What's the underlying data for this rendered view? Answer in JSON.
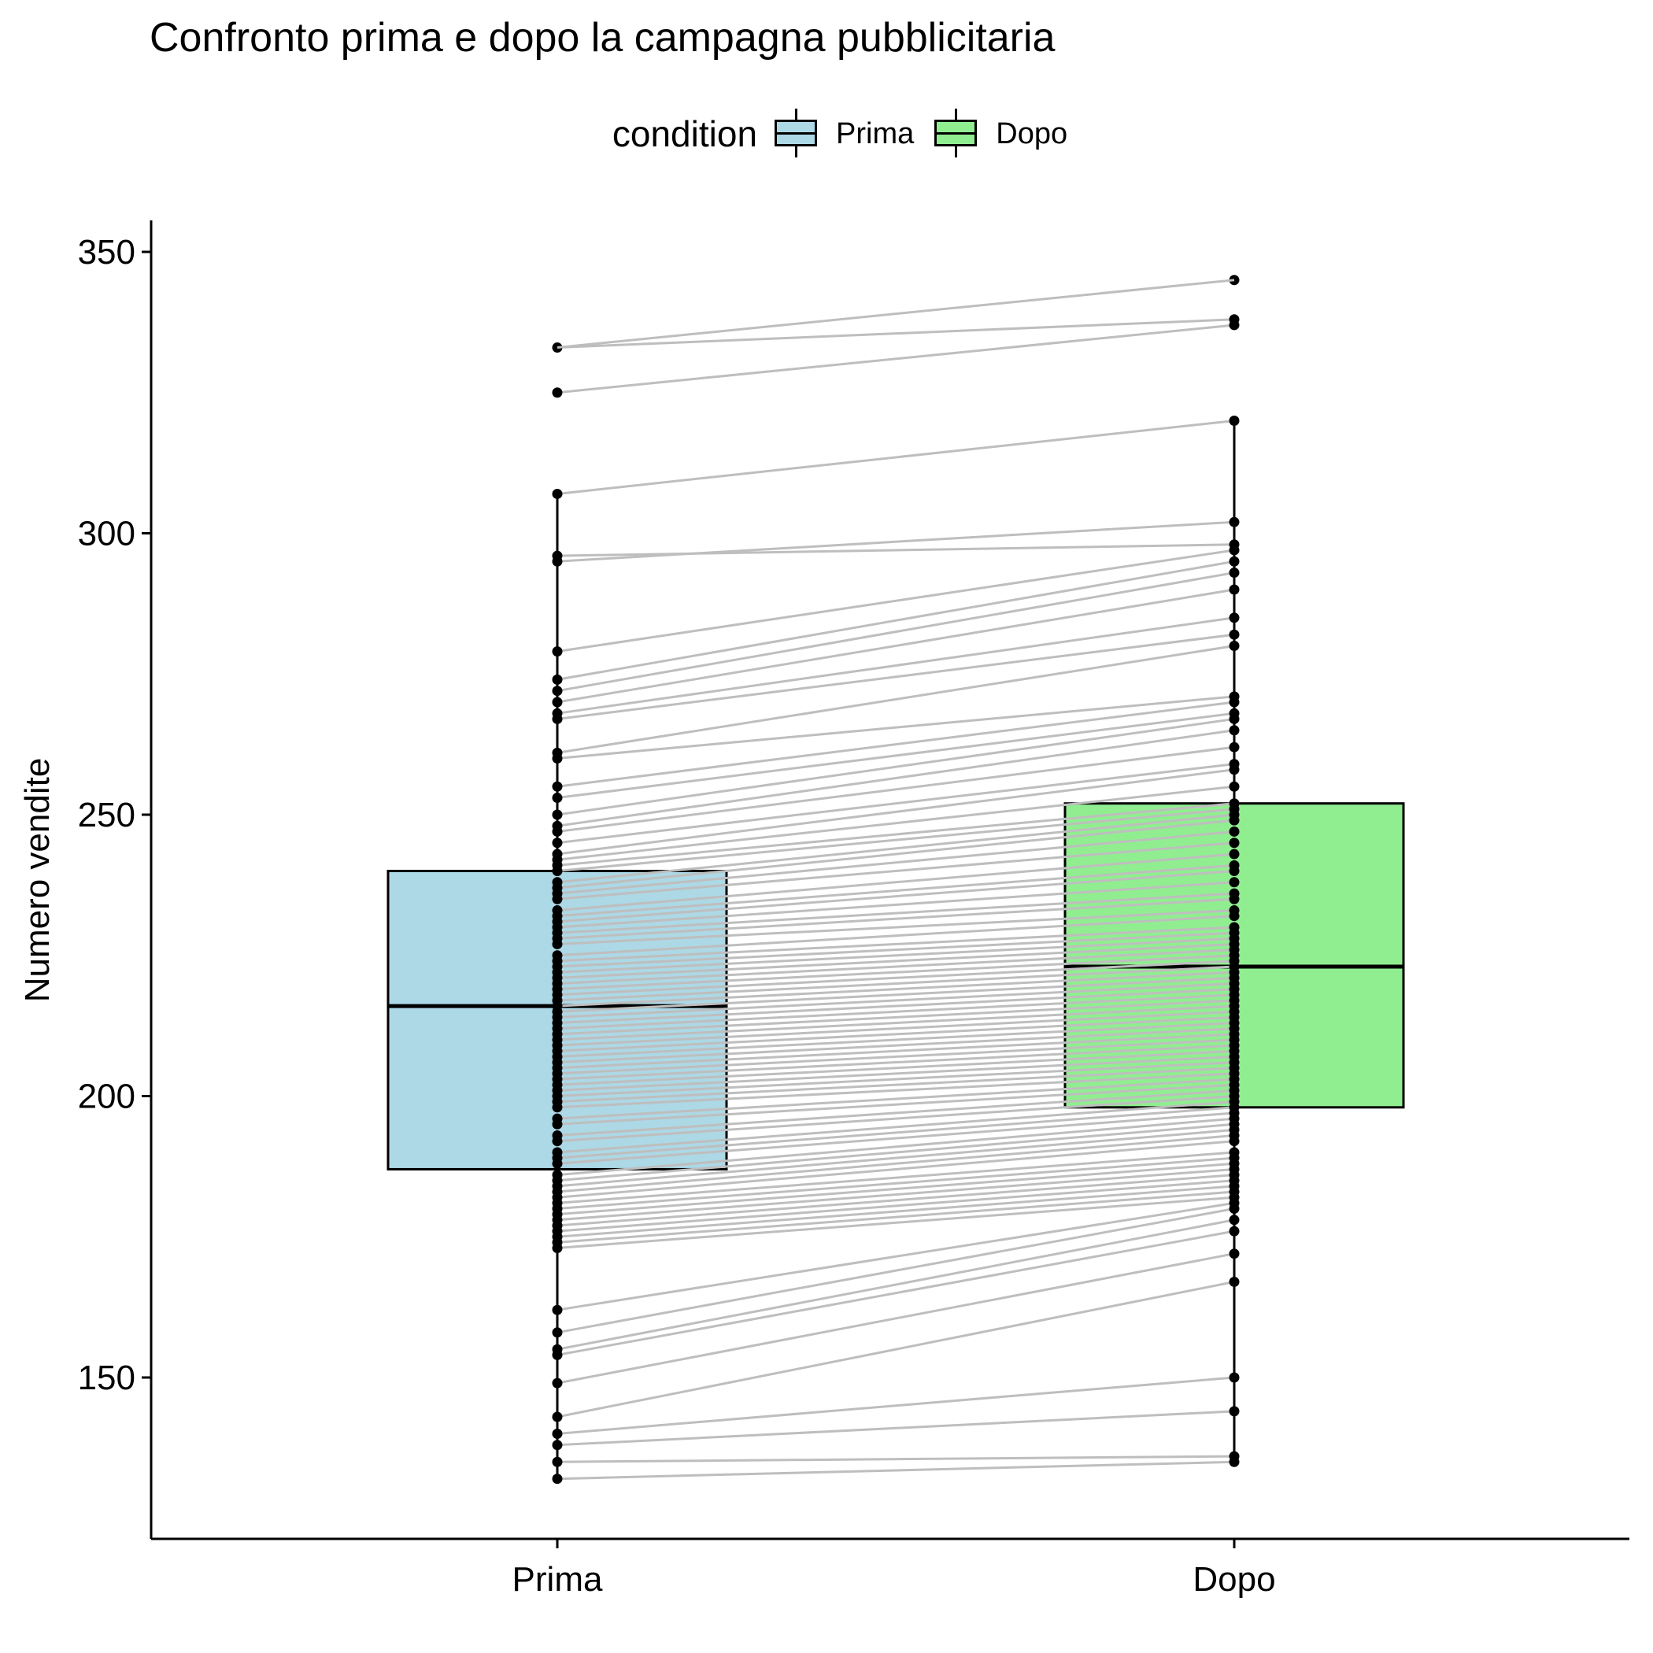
{
  "chart_data": {
    "type": "boxplot",
    "title": "Confronto prima e dopo la campagna pubblicitaria",
    "xlabel": "",
    "ylabel": "Numero vendite",
    "ylim": [
      122,
      355
    ],
    "yticks": [
      150,
      200,
      250,
      300,
      350
    ],
    "categories": [
      "Prima",
      "Dopo"
    ],
    "legend": {
      "title": "condition",
      "position": "top",
      "entries": [
        {
          "name": "Prima",
          "color": "#ADD8E6"
        },
        {
          "name": "Dopo",
          "color": "#90EE90"
        }
      ]
    },
    "boxes": [
      {
        "name": "Prima",
        "color": "#ADD8E6",
        "q1": 187,
        "median": 216,
        "q3": 240,
        "whisker_low": 132,
        "whisker_high": 307
      },
      {
        "name": "Dopo",
        "color": "#90EE90",
        "q1": 198,
        "median": 223,
        "q3": 252,
        "whisker_low": 135,
        "whisker_high": 320
      }
    ],
    "paired_line_color": "#BEBEBE",
    "point_color": "#000000",
    "pairs": [
      [
        333,
        338
      ],
      [
        325,
        337
      ],
      [
        307,
        320
      ],
      [
        296,
        298
      ],
      [
        295,
        302
      ],
      [
        279,
        297
      ],
      [
        274,
        295
      ],
      [
        272,
        293
      ],
      [
        270,
        290
      ],
      [
        268,
        285
      ],
      [
        267,
        282
      ],
      [
        261,
        280
      ],
      [
        260,
        271
      ],
      [
        255,
        270
      ],
      [
        253,
        268
      ],
      [
        250,
        267
      ],
      [
        248,
        265
      ],
      [
        247,
        262
      ],
      [
        245,
        259
      ],
      [
        243,
        258
      ],
      [
        242,
        255
      ],
      [
        241,
        252
      ],
      [
        240,
        251
      ],
      [
        238,
        250
      ],
      [
        237,
        249
      ],
      [
        236,
        247
      ],
      [
        235,
        245
      ],
      [
        233,
        243
      ],
      [
        232,
        241
      ],
      [
        231,
        240
      ],
      [
        230,
        238
      ],
      [
        229,
        236
      ],
      [
        228,
        235
      ],
      [
        227,
        233
      ],
      [
        225,
        232
      ],
      [
        224,
        230
      ],
      [
        223,
        229
      ],
      [
        222,
        228
      ],
      [
        221,
        227
      ],
      [
        220,
        226
      ],
      [
        219,
        225
      ],
      [
        218,
        224
      ],
      [
        217,
        223
      ],
      [
        216,
        222
      ],
      [
        215,
        221
      ],
      [
        214,
        220
      ],
      [
        213,
        219
      ],
      [
        212,
        218
      ],
      [
        211,
        217
      ],
      [
        210,
        216
      ],
      [
        209,
        215
      ],
      [
        208,
        214
      ],
      [
        207,
        213
      ],
      [
        206,
        212
      ],
      [
        205,
        211
      ],
      [
        204,
        210
      ],
      [
        203,
        209
      ],
      [
        202,
        208
      ],
      [
        201,
        207
      ],
      [
        200,
        206
      ],
      [
        199,
        205
      ],
      [
        198,
        204
      ],
      [
        196,
        203
      ],
      [
        195,
        202
      ],
      [
        193,
        201
      ],
      [
        192,
        200
      ],
      [
        190,
        199
      ],
      [
        189,
        198
      ],
      [
        188,
        197
      ],
      [
        186,
        196
      ],
      [
        185,
        195
      ],
      [
        184,
        194
      ],
      [
        183,
        193
      ],
      [
        182,
        192
      ],
      [
        181,
        190
      ],
      [
        180,
        189
      ],
      [
        179,
        188
      ],
      [
        178,
        187
      ],
      [
        177,
        186
      ],
      [
        176,
        185
      ],
      [
        175,
        184
      ],
      [
        174,
        183
      ],
      [
        173,
        182
      ],
      [
        162,
        181
      ],
      [
        158,
        180
      ],
      [
        155,
        178
      ],
      [
        154,
        176
      ],
      [
        149,
        172
      ],
      [
        143,
        167
      ],
      [
        140,
        150
      ],
      [
        138,
        144
      ],
      [
        135,
        136
      ],
      [
        132,
        135
      ]
    ]
  }
}
